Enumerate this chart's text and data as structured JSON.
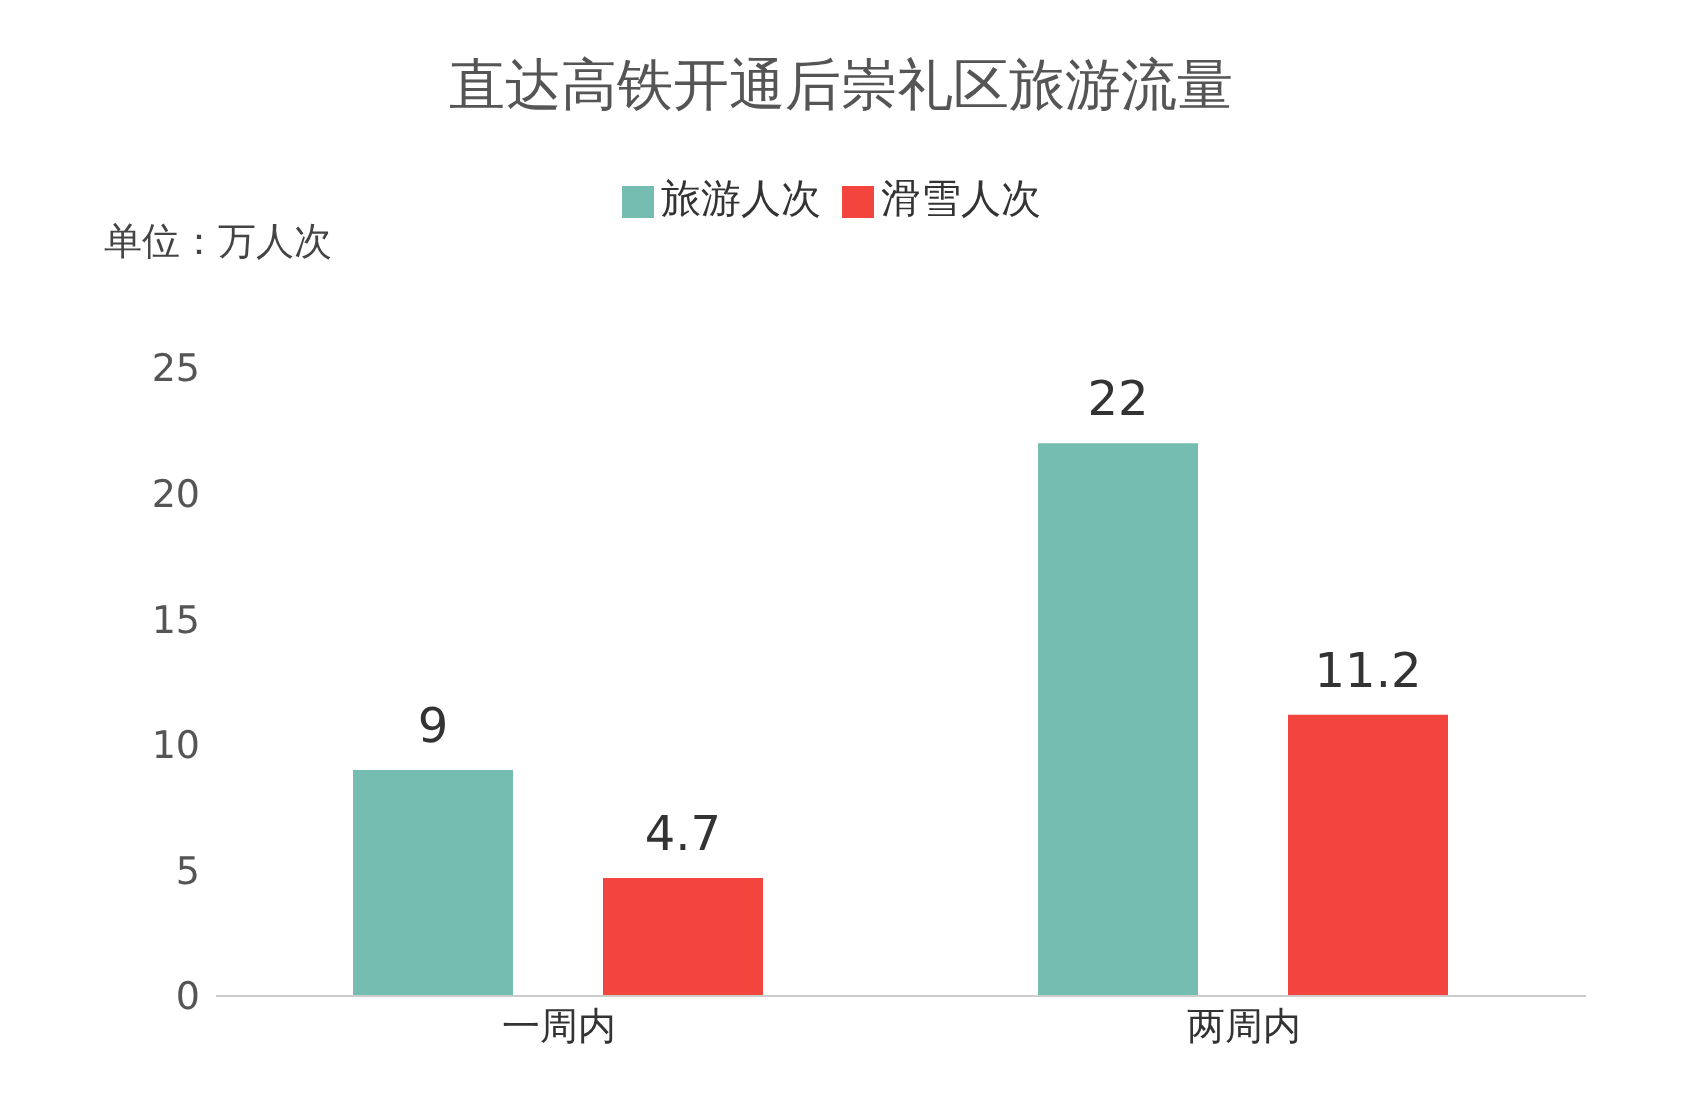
{
  "chart_data": {
    "type": "bar",
    "title": "直达高铁开通后崇礼区旅游流量",
    "ylabel": "单位：万人次",
    "categories": [
      "一周内",
      "两周内"
    ],
    "series": [
      {
        "name": "旅游人次",
        "color": "#76bdb1",
        "values": [
          9,
          22
        ]
      },
      {
        "name": "滑雪人次",
        "color": "#f1453d",
        "values": [
          4.7,
          11.2
        ]
      }
    ],
    "ylim": [
      0,
      25
    ],
    "yticks": [
      0,
      5,
      10,
      15,
      20,
      25
    ],
    "grid": false,
    "legend": "top",
    "data_labels": true
  }
}
